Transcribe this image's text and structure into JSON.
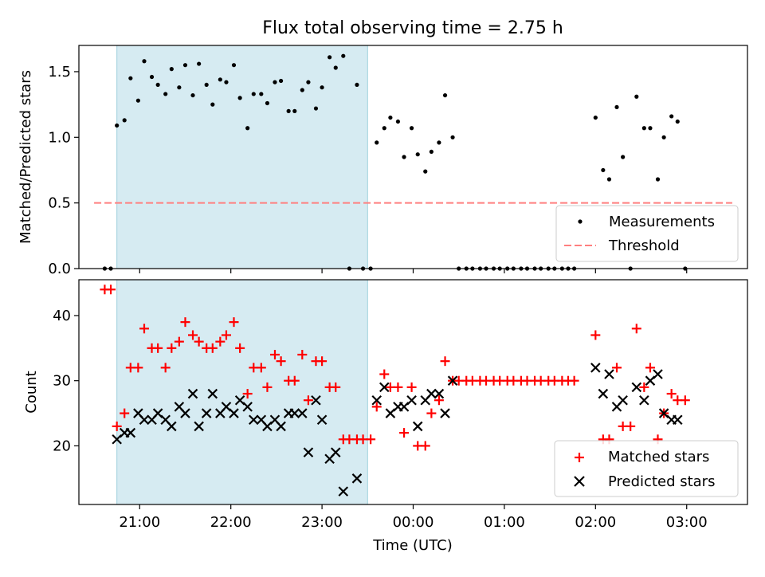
{
  "figure_title": "Flux total observing time = 2.75 h",
  "chart_data": [
    {
      "type": "scatter",
      "ylabel": "Matched/Predicted stars",
      "ylim": [
        0,
        1.7
      ],
      "xlim": [
        "20:20",
        "03:40"
      ],
      "yticks": [
        0.0,
        0.5,
        1.0,
        1.5
      ],
      "ytick_labels": [
        "0.0",
        "0.5",
        "1.0",
        "1.5"
      ],
      "shaded_interval": [
        "20:45",
        "23:30"
      ],
      "shade_color": "#add8e6",
      "threshold": {
        "name": "Threshold",
        "value": 0.5,
        "x_range": [
          "20:30",
          "03:30"
        ],
        "color": "#ff7f7f",
        "style": "dashed"
      },
      "legend_position": "lower-right",
      "legend_entries": [
        "Measurements",
        "Threshold"
      ],
      "series": [
        {
          "name": "Measurements",
          "color": "#000000",
          "marker": "dot",
          "points": [
            [
              "20:37",
              0
            ],
            [
              "20:41",
              0
            ],
            [
              "20:45",
              1.09
            ],
            [
              "20:50",
              1.13
            ],
            [
              "20:54",
              1.45
            ],
            [
              "20:59",
              1.28
            ],
            [
              "21:03",
              1.58
            ],
            [
              "21:08",
              1.46
            ],
            [
              "21:12",
              1.4
            ],
            [
              "21:17",
              1.33
            ],
            [
              "21:21",
              1.52
            ],
            [
              "21:26",
              1.38
            ],
            [
              "21:30",
              1.55
            ],
            [
              "21:35",
              1.32
            ],
            [
              "21:39",
              1.56
            ],
            [
              "21:44",
              1.4
            ],
            [
              "21:48",
              1.25
            ],
            [
              "21:53",
              1.44
            ],
            [
              "21:57",
              1.42
            ],
            [
              "22:02",
              1.55
            ],
            [
              "22:06",
              1.3
            ],
            [
              "22:11",
              1.07
            ],
            [
              "22:15",
              1.33
            ],
            [
              "22:20",
              1.33
            ],
            [
              "22:24",
              1.26
            ],
            [
              "22:29",
              1.42
            ],
            [
              "22:33",
              1.43
            ],
            [
              "22:38",
              1.2
            ],
            [
              "22:42",
              1.2
            ],
            [
              "22:47",
              1.36
            ],
            [
              "22:51",
              1.42
            ],
            [
              "22:56",
              1.22
            ],
            [
              "23:00",
              1.38
            ],
            [
              "23:05",
              1.61
            ],
            [
              "23:09",
              1.53
            ],
            [
              "23:14",
              1.62
            ],
            [
              "23:18",
              0
            ],
            [
              "23:23",
              1.4
            ],
            [
              "23:27",
              0
            ],
            [
              "23:32",
              0
            ],
            [
              "23:36",
              0.96
            ],
            [
              "23:41",
              1.07
            ],
            [
              "23:45",
              1.15
            ],
            [
              "23:50",
              1.12
            ],
            [
              "23:54",
              0.85
            ],
            [
              "23:59",
              1.07
            ],
            [
              "00:03",
              0.87
            ],
            [
              "00:08",
              0.74
            ],
            [
              "00:12",
              0.89
            ],
            [
              "00:17",
              0.96
            ],
            [
              "00:21",
              1.32
            ],
            [
              "00:26",
              1.0
            ],
            [
              "00:30",
              0
            ],
            [
              "00:35",
              0
            ],
            [
              "00:39",
              0
            ],
            [
              "00:44",
              0
            ],
            [
              "00:48",
              0
            ],
            [
              "00:53",
              0
            ],
            [
              "00:57",
              0
            ],
            [
              "01:02",
              0
            ],
            [
              "01:06",
              0
            ],
            [
              "01:11",
              0
            ],
            [
              "01:15",
              0
            ],
            [
              "01:20",
              0
            ],
            [
              "01:24",
              0
            ],
            [
              "01:29",
              0
            ],
            [
              "01:33",
              0
            ],
            [
              "01:38",
              0
            ],
            [
              "01:42",
              0
            ],
            [
              "01:46",
              0
            ],
            [
              "02:00",
              1.15
            ],
            [
              "02:05",
              0.75
            ],
            [
              "02:09",
              0.68
            ],
            [
              "02:14",
              1.23
            ],
            [
              "02:18",
              0.85
            ],
            [
              "02:23",
              0
            ],
            [
              "02:27",
              1.31
            ],
            [
              "02:32",
              1.07
            ],
            [
              "02:36",
              1.07
            ],
            [
              "02:41",
              0.68
            ],
            [
              "02:45",
              1.0
            ],
            [
              "02:50",
              1.16
            ],
            [
              "02:54",
              1.12
            ],
            [
              "02:59",
              0
            ]
          ]
        }
      ]
    },
    {
      "type": "scatter",
      "xlabel": "Time (UTC)",
      "ylabel": "Count",
      "ylim": [
        11,
        45.5
      ],
      "xlim": [
        "20:20",
        "03:40"
      ],
      "yticks": [
        20,
        30,
        40
      ],
      "ytick_labels": [
        "20",
        "30",
        "40"
      ],
      "xticks": [
        "21:00",
        "22:00",
        "23:00",
        "00:00",
        "01:00",
        "02:00",
        "03:00"
      ],
      "xtick_labels": [
        "21:00",
        "22:00",
        "23:00",
        "00:00",
        "01:00",
        "02:00",
        "03:00"
      ],
      "shaded_interval": [
        "20:45",
        "23:30"
      ],
      "shade_color": "#add8e6",
      "legend_position": "lower-right",
      "legend_entries": [
        "Matched stars",
        "Predicted stars"
      ],
      "series": [
        {
          "name": "Matched stars",
          "color": "#ff0000",
          "marker": "plus",
          "points": [
            [
              "20:37",
              44
            ],
            [
              "20:41",
              44
            ],
            [
              "20:45",
              23
            ],
            [
              "20:50",
              25
            ],
            [
              "20:54",
              32
            ],
            [
              "20:59",
              32
            ],
            [
              "21:03",
              38
            ],
            [
              "21:08",
              35
            ],
            [
              "21:12",
              35
            ],
            [
              "21:17",
              32
            ],
            [
              "21:21",
              35
            ],
            [
              "21:26",
              36
            ],
            [
              "21:30",
              39
            ],
            [
              "21:35",
              37
            ],
            [
              "21:39",
              36
            ],
            [
              "21:44",
              35
            ],
            [
              "21:48",
              35
            ],
            [
              "21:53",
              36
            ],
            [
              "21:57",
              37
            ],
            [
              "22:02",
              39
            ],
            [
              "22:06",
              35
            ],
            [
              "22:11",
              28
            ],
            [
              "22:15",
              32
            ],
            [
              "22:20",
              32
            ],
            [
              "22:24",
              29
            ],
            [
              "22:29",
              34
            ],
            [
              "22:33",
              33
            ],
            [
              "22:38",
              30
            ],
            [
              "22:42",
              30
            ],
            [
              "22:47",
              34
            ],
            [
              "22:51",
              27
            ],
            [
              "22:56",
              33
            ],
            [
              "23:00",
              33
            ],
            [
              "23:05",
              29
            ],
            [
              "23:09",
              29
            ],
            [
              "23:14",
              21
            ],
            [
              "23:18",
              21
            ],
            [
              "23:23",
              21
            ],
            [
              "23:27",
              21
            ],
            [
              "23:32",
              21
            ],
            [
              "23:36",
              26
            ],
            [
              "23:41",
              31
            ],
            [
              "23:45",
              29
            ],
            [
              "23:50",
              29
            ],
            [
              "23:54",
              22
            ],
            [
              "23:59",
              29
            ],
            [
              "00:03",
              20
            ],
            [
              "00:08",
              20
            ],
            [
              "00:12",
              25
            ],
            [
              "00:17",
              27
            ],
            [
              "00:21",
              33
            ],
            [
              "00:26",
              30
            ],
            [
              "00:30",
              30
            ],
            [
              "00:35",
              30
            ],
            [
              "00:39",
              30
            ],
            [
              "00:44",
              30
            ],
            [
              "00:48",
              30
            ],
            [
              "00:53",
              30
            ],
            [
              "00:57",
              30
            ],
            [
              "01:02",
              30
            ],
            [
              "01:06",
              30
            ],
            [
              "01:11",
              30
            ],
            [
              "01:15",
              30
            ],
            [
              "01:20",
              30
            ],
            [
              "01:24",
              30
            ],
            [
              "01:29",
              30
            ],
            [
              "01:33",
              30
            ],
            [
              "01:38",
              30
            ],
            [
              "01:42",
              30
            ],
            [
              "01:46",
              30
            ],
            [
              "02:00",
              37
            ],
            [
              "02:05",
              21
            ],
            [
              "02:09",
              21
            ],
            [
              "02:14",
              32
            ],
            [
              "02:18",
              23
            ],
            [
              "02:23",
              23
            ],
            [
              "02:27",
              38
            ],
            [
              "02:32",
              29
            ],
            [
              "02:36",
              32
            ],
            [
              "02:41",
              21
            ],
            [
              "02:45",
              25
            ],
            [
              "02:50",
              28
            ],
            [
              "02:54",
              27
            ],
            [
              "02:59",
              27
            ]
          ]
        },
        {
          "name": "Predicted stars",
          "color": "#000000",
          "marker": "x",
          "points": [
            [
              "20:45",
              21
            ],
            [
              "20:50",
              22
            ],
            [
              "20:54",
              22
            ],
            [
              "20:59",
              25
            ],
            [
              "21:03",
              24
            ],
            [
              "21:08",
              24
            ],
            [
              "21:12",
              25
            ],
            [
              "21:17",
              24
            ],
            [
              "21:21",
              23
            ],
            [
              "21:26",
              26
            ],
            [
              "21:30",
              25
            ],
            [
              "21:35",
              28
            ],
            [
              "21:39",
              23
            ],
            [
              "21:44",
              25
            ],
            [
              "21:48",
              28
            ],
            [
              "21:53",
              25
            ],
            [
              "21:57",
              26
            ],
            [
              "22:02",
              25
            ],
            [
              "22:06",
              27
            ],
            [
              "22:11",
              26
            ],
            [
              "22:15",
              24
            ],
            [
              "22:20",
              24
            ],
            [
              "22:24",
              23
            ],
            [
              "22:29",
              24
            ],
            [
              "22:33",
              23
            ],
            [
              "22:38",
              25
            ],
            [
              "22:42",
              25
            ],
            [
              "22:47",
              25
            ],
            [
              "22:51",
              19
            ],
            [
              "22:56",
              27
            ],
            [
              "23:00",
              24
            ],
            [
              "23:05",
              18
            ],
            [
              "23:09",
              19
            ],
            [
              "23:14",
              13
            ],
            [
              "23:23",
              15
            ],
            [
              "23:36",
              27
            ],
            [
              "23:41",
              29
            ],
            [
              "23:45",
              25
            ],
            [
              "23:50",
              26
            ],
            [
              "23:54",
              26
            ],
            [
              "23:59",
              27
            ],
            [
              "00:03",
              23
            ],
            [
              "00:08",
              27
            ],
            [
              "00:12",
              28
            ],
            [
              "00:17",
              28
            ],
            [
              "00:21",
              25
            ],
            [
              "00:26",
              30
            ],
            [
              "02:00",
              32
            ],
            [
              "02:05",
              28
            ],
            [
              "02:09",
              31
            ],
            [
              "02:14",
              26
            ],
            [
              "02:18",
              27
            ],
            [
              "02:27",
              29
            ],
            [
              "02:32",
              27
            ],
            [
              "02:36",
              30
            ],
            [
              "02:41",
              31
            ],
            [
              "02:45",
              25
            ],
            [
              "02:50",
              24
            ],
            [
              "02:54",
              24
            ]
          ]
        }
      ]
    }
  ]
}
